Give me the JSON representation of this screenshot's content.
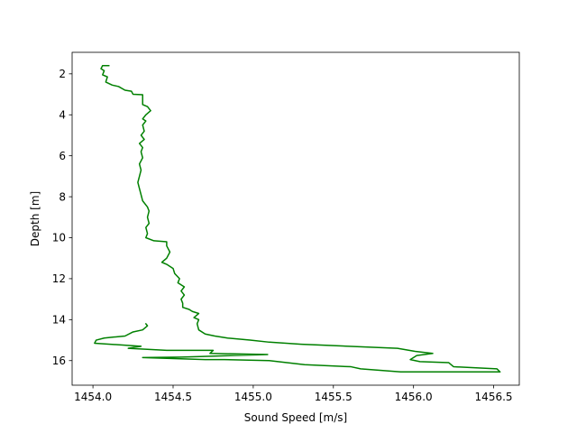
{
  "chart_data": {
    "type": "line",
    "title": "",
    "xlabel": "Sound Speed [m/s]",
    "ylabel": "Depth [m]",
    "xlim": [
      1453.87,
      1456.66
    ],
    "ylim": [
      17.2,
      0.95
    ],
    "y_inverted": true,
    "grid": false,
    "legend": "none",
    "xticks": [
      1454.0,
      1454.5,
      1455.0,
      1455.5,
      1456.0,
      1456.5
    ],
    "xtick_labels": [
      "1454.0",
      "1454.5",
      "1455.0",
      "1455.5",
      "1456.0",
      "1456.5"
    ],
    "yticks": [
      2,
      4,
      6,
      8,
      10,
      12,
      14,
      16
    ],
    "ytick_labels": [
      "2",
      "4",
      "6",
      "8",
      "10",
      "12",
      "14",
      "16"
    ],
    "series": [
      {
        "color": "#008000",
        "points": [
          [
            1454.1,
            1.6
          ],
          [
            1454.06,
            1.6
          ],
          [
            1454.05,
            1.75
          ],
          [
            1454.07,
            1.85
          ],
          [
            1454.06,
            2.05
          ],
          [
            1454.09,
            2.15
          ],
          [
            1454.08,
            2.4
          ],
          [
            1454.12,
            2.55
          ],
          [
            1454.16,
            2.62
          ],
          [
            1454.2,
            2.8
          ],
          [
            1454.24,
            2.85
          ],
          [
            1454.25,
            3.0
          ],
          [
            1454.31,
            3.02
          ],
          [
            1454.31,
            3.5
          ],
          [
            1454.34,
            3.6
          ],
          [
            1454.36,
            3.8
          ],
          [
            1454.33,
            4.0
          ],
          [
            1454.31,
            4.2
          ],
          [
            1454.33,
            4.3
          ],
          [
            1454.31,
            4.5
          ],
          [
            1454.32,
            4.8
          ],
          [
            1454.3,
            5.0
          ],
          [
            1454.32,
            5.2
          ],
          [
            1454.29,
            5.4
          ],
          [
            1454.31,
            5.6
          ],
          [
            1454.3,
            5.8
          ],
          [
            1454.31,
            6.1
          ],
          [
            1454.29,
            6.4
          ],
          [
            1454.3,
            6.7
          ],
          [
            1454.29,
            7.0
          ],
          [
            1454.28,
            7.3
          ],
          [
            1454.29,
            7.6
          ],
          [
            1454.3,
            7.9
          ],
          [
            1454.31,
            8.2
          ],
          [
            1454.34,
            8.5
          ],
          [
            1454.35,
            8.7
          ],
          [
            1454.34,
            9.0
          ],
          [
            1454.35,
            9.3
          ],
          [
            1454.33,
            9.5
          ],
          [
            1454.34,
            9.8
          ],
          [
            1454.33,
            10.0
          ],
          [
            1454.38,
            10.15
          ],
          [
            1454.46,
            10.2
          ],
          [
            1454.46,
            10.4
          ],
          [
            1454.48,
            10.7
          ],
          [
            1454.46,
            11.0
          ],
          [
            1454.43,
            11.2
          ],
          [
            1454.46,
            11.3
          ],
          [
            1454.5,
            11.5
          ],
          [
            1454.51,
            11.75
          ],
          [
            1454.54,
            12.0
          ],
          [
            1454.53,
            12.2
          ],
          [
            1454.57,
            12.4
          ],
          [
            1454.55,
            12.6
          ],
          [
            1454.57,
            12.8
          ],
          [
            1454.55,
            13.0
          ],
          [
            1454.56,
            13.2
          ],
          [
            1454.56,
            13.4
          ],
          [
            1454.6,
            13.5
          ],
          [
            1454.62,
            13.6
          ],
          [
            1454.66,
            13.7
          ],
          [
            1454.63,
            13.9
          ],
          [
            1454.66,
            14.0
          ],
          [
            1454.65,
            14.2
          ],
          [
            1454.66,
            14.5
          ],
          [
            1454.7,
            14.7
          ],
          [
            1454.76,
            14.8
          ],
          [
            1454.84,
            14.9
          ],
          [
            1454.98,
            15.0
          ],
          [
            1455.1,
            15.1
          ],
          [
            1455.3,
            15.2
          ],
          [
            1455.9,
            15.4
          ],
          [
            1456.01,
            15.55
          ],
          [
            1456.12,
            15.65
          ],
          [
            1456.02,
            15.75
          ],
          [
            1455.98,
            15.95
          ],
          [
            1456.04,
            16.05
          ],
          [
            1456.22,
            16.1
          ],
          [
            1456.25,
            16.3
          ],
          [
            1456.52,
            16.4
          ],
          [
            1456.54,
            16.55
          ],
          [
            1455.92,
            16.55
          ],
          [
            1455.67,
            16.4
          ],
          [
            1455.61,
            16.3
          ],
          [
            1455.32,
            16.2
          ],
          [
            1455.1,
            16.0
          ],
          [
            1454.82,
            15.95
          ],
          [
            1454.7,
            15.95
          ],
          [
            1454.31,
            15.85
          ],
          [
            1454.55,
            15.83
          ],
          [
            1455.09,
            15.7
          ],
          [
            1454.73,
            15.65
          ],
          [
            1454.75,
            15.5
          ],
          [
            1454.46,
            15.5
          ],
          [
            1454.22,
            15.4
          ],
          [
            1454.3,
            15.3
          ],
          [
            1454.01,
            15.15
          ],
          [
            1454.02,
            15.0
          ],
          [
            1454.07,
            14.9
          ],
          [
            1454.13,
            14.85
          ],
          [
            1454.2,
            14.8
          ],
          [
            1454.25,
            14.6
          ],
          [
            1454.31,
            14.5
          ],
          [
            1454.34,
            14.3
          ],
          [
            1454.33,
            14.2
          ]
        ]
      }
    ]
  }
}
